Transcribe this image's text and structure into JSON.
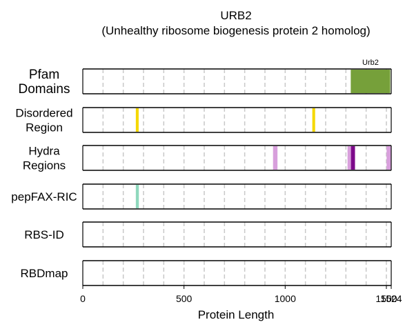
{
  "chart_data": {
    "type": "track",
    "title": "URB2",
    "subtitle": "(Unhealthy ribosome biogenesis protein 2 homolog)",
    "xlabel": "Protein Length",
    "xlim": [
      0,
      1524
    ],
    "xticks": [
      0,
      500,
      1000,
      1500,
      1524
    ],
    "protein_length": 1524,
    "tracks": [
      {
        "name": "Pfam\nDomains",
        "features": [
          {
            "label": "Urb2",
            "start": 1324,
            "end": 1519,
            "color": "#76a03a"
          }
        ]
      },
      {
        "name": "Disordered\nRegion",
        "features": [
          {
            "start": 262,
            "end": 276,
            "color": "#f5d800"
          },
          {
            "start": 1134,
            "end": 1148,
            "color": "#f5d800"
          }
        ]
      },
      {
        "name": "Hydra\nRegions",
        "features": [
          {
            "start": 940,
            "end": 962,
            "color": "#d89fdc"
          },
          {
            "start": 1308,
            "end": 1325,
            "color": "#d89fdc"
          },
          {
            "start": 1325,
            "end": 1345,
            "color": "#7d0a8a"
          },
          {
            "start": 1501,
            "end": 1524,
            "color": "#d89fdc"
          }
        ]
      },
      {
        "name": "pepFAX-RIC",
        "features": [
          {
            "start": 262,
            "end": 277,
            "color": "#8fd8bd"
          }
        ]
      },
      {
        "name": "RBS-ID",
        "features": []
      },
      {
        "name": "RBDmap",
        "features": []
      }
    ],
    "grid": true
  }
}
